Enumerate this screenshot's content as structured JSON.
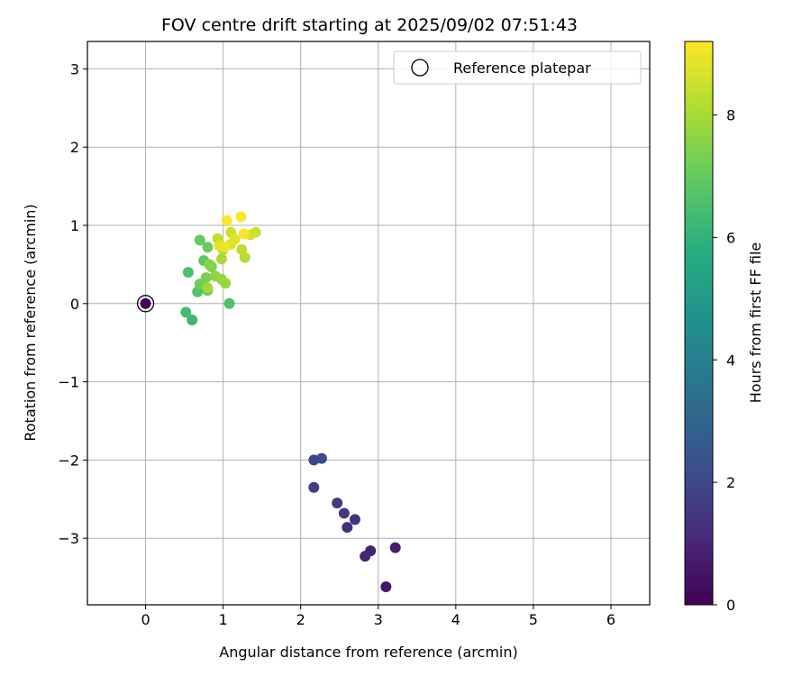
{
  "chart_data": {
    "type": "scatter",
    "title": "FOV centre drift starting at 2025/09/02 07:51:43",
    "xlabel": "Angular distance from reference (arcmin)",
    "ylabel": "Rotation from reference (arcmin)",
    "xlim": [
      -0.75,
      6.5
    ],
    "ylim": [
      -3.85,
      3.35
    ],
    "xticks": [
      0,
      1,
      2,
      3,
      4,
      5,
      6
    ],
    "yticks": [
      -3,
      -2,
      -1,
      0,
      1,
      2,
      3
    ],
    "xtick_labels": [
      "0",
      "1",
      "2",
      "3",
      "4",
      "5",
      "6"
    ],
    "ytick_labels": [
      "−3",
      "−2",
      "−1",
      "0",
      "1",
      "2",
      "3"
    ],
    "grid": true,
    "legend": {
      "position": "top-right",
      "entries": [
        "Reference platepar"
      ]
    },
    "colorbar": {
      "label": "Hours from first FF file",
      "range": [
        0,
        9.2
      ],
      "ticks": [
        0,
        2,
        4,
        6,
        8
      ],
      "tick_labels": [
        "0",
        "2",
        "4",
        "6",
        "8"
      ],
      "colormap": "viridis"
    },
    "reference_point": {
      "x": 0,
      "y": 0,
      "hours": 0
    },
    "points": [
      {
        "x": 3.1,
        "y": -3.62,
        "h": 0.6
      },
      {
        "x": 3.22,
        "y": -3.12,
        "h": 0.8
      },
      {
        "x": 2.9,
        "y": -3.16,
        "h": 0.9
      },
      {
        "x": 2.83,
        "y": -3.23,
        "h": 1.0
      },
      {
        "x": 2.6,
        "y": -2.86,
        "h": 1.2
      },
      {
        "x": 2.7,
        "y": -2.76,
        "h": 1.3
      },
      {
        "x": 2.56,
        "y": -2.68,
        "h": 1.5
      },
      {
        "x": 2.47,
        "y": -2.55,
        "h": 1.6
      },
      {
        "x": 2.17,
        "y": -2.35,
        "h": 1.8
      },
      {
        "x": 2.17,
        "y": -2.0,
        "h": 2.0
      },
      {
        "x": 2.27,
        "y": -1.98,
        "h": 2.1
      },
      {
        "x": 0.6,
        "y": -0.21,
        "h": 6.2
      },
      {
        "x": 0.52,
        "y": -0.11,
        "h": 6.4
      },
      {
        "x": 0.55,
        "y": 0.4,
        "h": 6.5
      },
      {
        "x": 1.08,
        "y": 0.0,
        "h": 6.6
      },
      {
        "x": 0.67,
        "y": 0.15,
        "h": 6.7
      },
      {
        "x": 0.8,
        "y": 0.17,
        "h": 6.8
      },
      {
        "x": 0.75,
        "y": 0.55,
        "h": 6.9
      },
      {
        "x": 0.7,
        "y": 0.81,
        "h": 7.0
      },
      {
        "x": 0.8,
        "y": 0.72,
        "h": 7.1
      },
      {
        "x": 0.7,
        "y": 0.25,
        "h": 7.2
      },
      {
        "x": 0.78,
        "y": 0.33,
        "h": 7.3
      },
      {
        "x": 0.85,
        "y": 0.47,
        "h": 7.4
      },
      {
        "x": 0.82,
        "y": 0.5,
        "h": 7.5
      },
      {
        "x": 0.9,
        "y": 0.35,
        "h": 7.6
      },
      {
        "x": 0.98,
        "y": 0.31,
        "h": 7.7
      },
      {
        "x": 1.03,
        "y": 0.26,
        "h": 7.8
      },
      {
        "x": 0.8,
        "y": 0.2,
        "h": 7.9
      },
      {
        "x": 0.98,
        "y": 0.57,
        "h": 8.0
      },
      {
        "x": 1.0,
        "y": 0.69,
        "h": 8.1
      },
      {
        "x": 1.28,
        "y": 0.59,
        "h": 8.2
      },
      {
        "x": 1.24,
        "y": 0.69,
        "h": 8.3
      },
      {
        "x": 0.93,
        "y": 0.83,
        "h": 8.4
      },
      {
        "x": 1.1,
        "y": 0.91,
        "h": 8.5
      },
      {
        "x": 1.42,
        "y": 0.91,
        "h": 8.5
      },
      {
        "x": 1.35,
        "y": 0.88,
        "h": 8.6
      },
      {
        "x": 1.1,
        "y": 0.76,
        "h": 8.7
      },
      {
        "x": 1.15,
        "y": 0.82,
        "h": 8.8
      },
      {
        "x": 0.95,
        "y": 0.74,
        "h": 8.9
      },
      {
        "x": 1.02,
        "y": 0.72,
        "h": 9.0
      },
      {
        "x": 1.27,
        "y": 0.89,
        "h": 9.1
      },
      {
        "x": 1.05,
        "y": 1.06,
        "h": 9.2
      },
      {
        "x": 1.23,
        "y": 1.11,
        "h": 9.2
      }
    ]
  }
}
